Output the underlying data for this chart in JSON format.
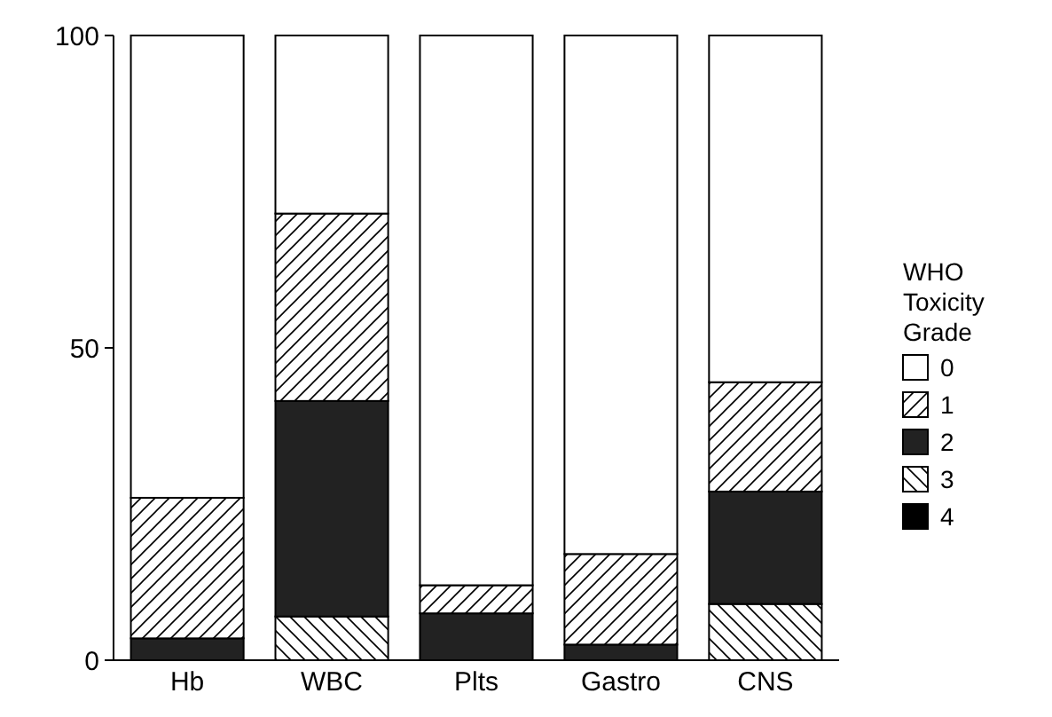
{
  "chart_data": {
    "type": "bar",
    "stacked": true,
    "categories": [
      "Hb",
      "WBC",
      "Plts",
      "Gastro",
      "CNS"
    ],
    "series": [
      {
        "name": "4",
        "color": "#000000",
        "values": [
          0,
          0,
          0,
          0,
          0
        ]
      },
      {
        "name": "3",
        "color": "#000000",
        "values": [
          0,
          7,
          0,
          0,
          9
        ]
      },
      {
        "name": "2",
        "color": "#222222",
        "values": [
          3.5,
          34.5,
          7.5,
          2.5,
          18
        ]
      },
      {
        "name": "1",
        "color": "#000000",
        "values": [
          22.5,
          30,
          4.5,
          14.5,
          17.5
        ]
      },
      {
        "name": "0",
        "color": "#ffffff",
        "values": [
          74,
          28.5,
          88,
          83,
          55.5
        ]
      }
    ],
    "ylim": [
      0,
      100
    ],
    "yticks": [
      0,
      50,
      100
    ],
    "grid": false,
    "legend": "right",
    "legend_title": "WHO Toxicity Grade"
  }
}
